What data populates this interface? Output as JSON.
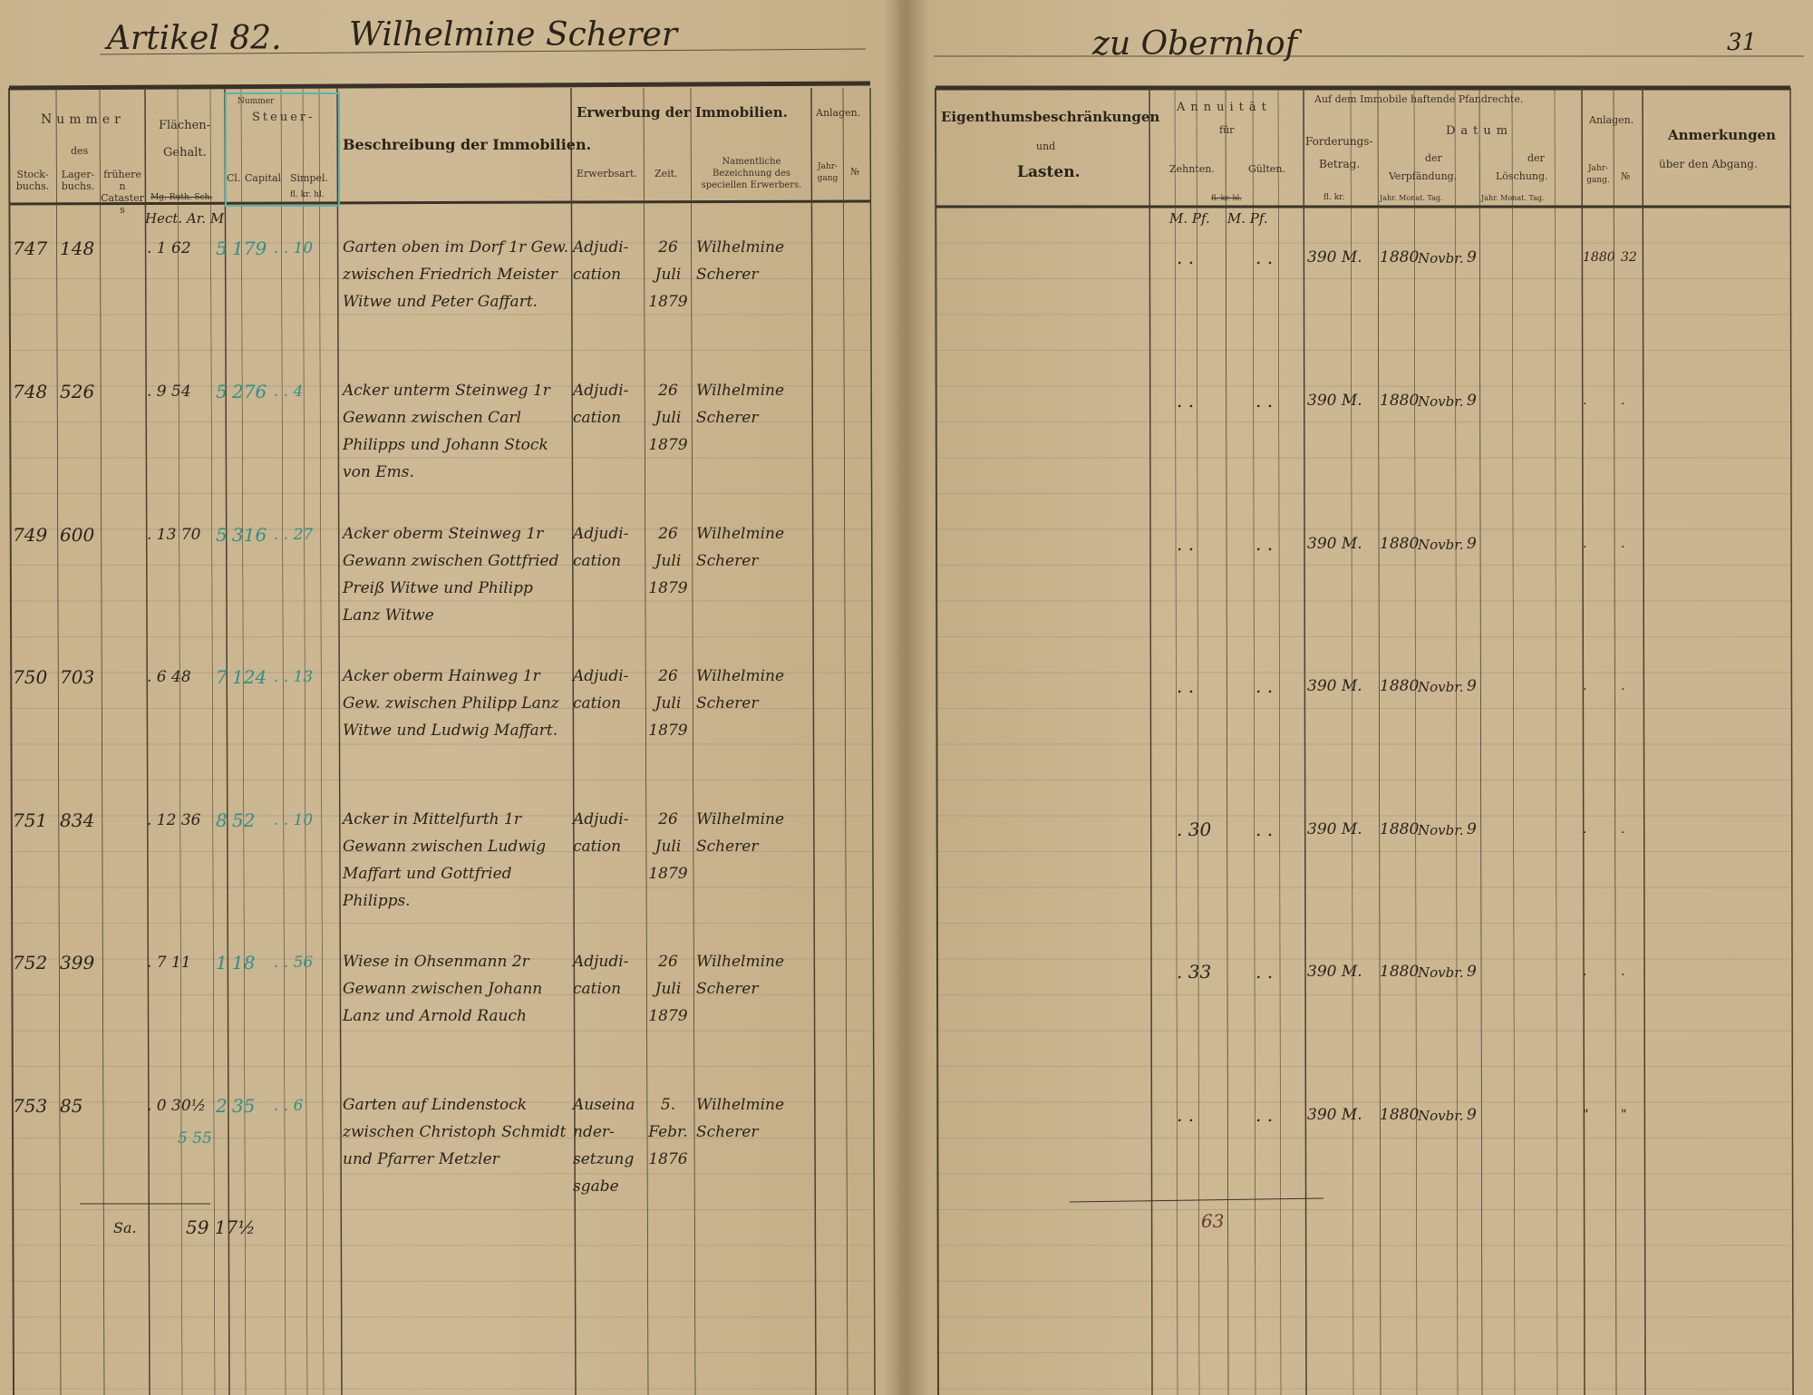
{
  "header_left": {
    "article": "Artikel 82.",
    "owner": "Wilhelmine Scherer"
  },
  "header_right": {
    "place": "zu Obernhof",
    "page_number": "31"
  },
  "left_columns": {
    "nummer": "Nummer",
    "des": "des",
    "stockbuchs": "Stock-buchs.",
    "lagerbuchs": "Lager-buchs.",
    "frueheren": "früheren Catasters",
    "flaechen": "Flächen-",
    "gehalt": "Gehalt.",
    "flaechen_units": "Mg. Ruth. Sch.",
    "stamp_label": "Nummer",
    "steuer": "Steuer-",
    "cl": "Cl.",
    "capital": "Capital",
    "simpel": "Simpel.",
    "steuer_units": "fl. kr. hl.",
    "beschreibung": "Beschreibung der Immobilien.",
    "erwerbung": "Erwerbung der Immobilien.",
    "erwerbsart": "Erwerbsart.",
    "zeit": "Zeit.",
    "namentliche": "Namentliche Bezeichnung des speciellen Erwerbers.",
    "anlagen": "Anlagen.",
    "jahrgang": "Jahr-gang",
    "nr": "№"
  },
  "right_columns": {
    "eigenthum": "Eigenthumsbeschränkungen",
    "und": "und",
    "lasten": "Lasten.",
    "annuitaet": "Annuität",
    "fuer": "für",
    "zehnten": "Zehnten.",
    "gueltens": "Gülten.",
    "annuity_units": "fl. kr. hl.",
    "pfandrechte": "Auf dem Immobile haftende Pfandrechte.",
    "forderungs": "Forderungs-",
    "betrag": "Betrag.",
    "betrag_units": "fl. kr.",
    "datum": "Datum",
    "der": "der",
    "verpfaendung": "Verpfändung.",
    "loeschung": "Löschung.",
    "date_units": "Jahr. Monat. Tag.",
    "anlagen": "Anlagen.",
    "jahrgang": "Jahr-gang.",
    "nr": "№",
    "anmerkungen": "Anmerkungen",
    "ueber_abgang": "über den Abgang."
  },
  "unit_notes": {
    "area_units": "Hect. Ar. M",
    "annuity_units": "M. Pf.    M. Pf."
  },
  "rows": [
    {
      "stock": "747",
      "lager": "148",
      "area": ". 1 62",
      "cl": "5",
      "capital": "179",
      "simpel": ". . 10",
      "desc": "Garten oben im Dorf 1r Gew. zwischen Friedrich Meister Witwe und Peter Gaffart.",
      "art": "Adjudi-cation",
      "zeit": "26 Juli 1879",
      "name": "Wilhelmine Scherer",
      "zehnten": ". .",
      "gulten": ". .",
      "betrag": "390 M.",
      "jahr": "1880",
      "monat": "Novbr.",
      "tag": "9",
      "anl_jahr": "1880",
      "anl_nr": "32"
    },
    {
      "stock": "748",
      "lager": "526",
      "area": ". 9 54",
      "cl": "5",
      "capital": "276",
      "simpel": ". . 4",
      "desc": "Acker unterm Steinweg 1r Gewann zwischen Carl Philipps und Johann Stock von Ems.",
      "art": "Adjudi-cation",
      "zeit": "26 Juli 1879",
      "name": "Wilhelmine Scherer",
      "zehnten": ". .",
      "gulten": ". .",
      "betrag": "390 M.",
      "jahr": "1880",
      "monat": "Novbr.",
      "tag": "9",
      "anl_jahr": ".",
      "anl_nr": "."
    },
    {
      "stock": "749",
      "lager": "600",
      "area": ". 13 70",
      "cl": "5",
      "capital": "316",
      "simpel": ". . 27",
      "desc": "Acker oberm Steinweg 1r Gewann zwischen Gottfried Preiß Witwe und Philipp Lanz Witwe",
      "art": "Adjudi-cation",
      "zeit": "26 Juli 1879",
      "name": "Wilhelmine Scherer",
      "zehnten": ". .",
      "gulten": ". .",
      "betrag": "390 M.",
      "jahr": "1880",
      "monat": "Novbr.",
      "tag": "9",
      "anl_jahr": ".",
      "anl_nr": "."
    },
    {
      "stock": "750",
      "lager": "703",
      "area": ". 6 48",
      "cl": "7",
      "capital": "124",
      "simpel": ". . 13",
      "desc": "Acker oberm Hainweg 1r Gew. zwischen Philipp Lanz Witwe und Ludwig Maffart.",
      "art": "Adjudi-cation",
      "zeit": "26 Juli 1879",
      "name": "Wilhelmine Scherer",
      "zehnten": ". .",
      "gulten": ". .",
      "betrag": "390 M.",
      "jahr": "1880",
      "monat": "Novbr.",
      "tag": "9",
      "anl_jahr": ".",
      "anl_nr": "."
    },
    {
      "stock": "751",
      "lager": "834",
      "area": ". 12 36",
      "cl": "8",
      "capital": "52",
      "simpel": ". . 10",
      "desc": "Acker in Mittelfurth 1r Gewann zwischen Ludwig Maffart und Gottfried Philipps.",
      "art": "Adjudi-cation",
      "zeit": "26 Juli 1879",
      "name": "Wilhelmine Scherer",
      "zehnten": ". 30",
      "gulten": ". .",
      "betrag": "390 M.",
      "jahr": "1880",
      "monat": "Novbr.",
      "tag": "9",
      "anl_jahr": ".",
      "anl_nr": "."
    },
    {
      "stock": "752",
      "lager": "399",
      "area": ". 7 11",
      "cl": "1",
      "capital": "18",
      "simpel": ". . 56",
      "desc": "Wiese in Ohsenmann 2r Gewann zwischen Johann Lanz und Arnold Rauch",
      "art": "Adjudi-cation",
      "zeit": "26 Juli 1879",
      "name": "Wilhelmine Scherer",
      "zehnten": ". 33",
      "gulten": ". .",
      "betrag": "390 M.",
      "jahr": "1880",
      "monat": "Novbr.",
      "tag": "9",
      "anl_jahr": ".",
      "anl_nr": "."
    },
    {
      "stock": "753",
      "lager": "85",
      "area": ". 0 30½",
      "area2": "5 55",
      "cl": "2",
      "capital": "35",
      "simpel": ". . 6",
      "desc": "Garten auf Lindenstock zwischen Christoph Schmidt und Pfarrer Metzler",
      "art": "Auseinander-setzungsgabe",
      "zeit": "5. Febr. 1876",
      "name": "Wilhelmine Scherer",
      "zehnten": ". .",
      "gulten": ". .",
      "betrag": "390 M.",
      "jahr": "1880",
      "monat": "Novbr.",
      "tag": "9",
      "anl_jahr": "\"",
      "anl_nr": "\""
    }
  ],
  "totals": {
    "label": "Sa.",
    "area_total": "59 17½",
    "annuity_total": "63"
  },
  "colors": {
    "paper": "#c9b48f",
    "ink": "#2a2318",
    "stamp_teal": "#2f8f87",
    "rule": "#4a4030"
  }
}
